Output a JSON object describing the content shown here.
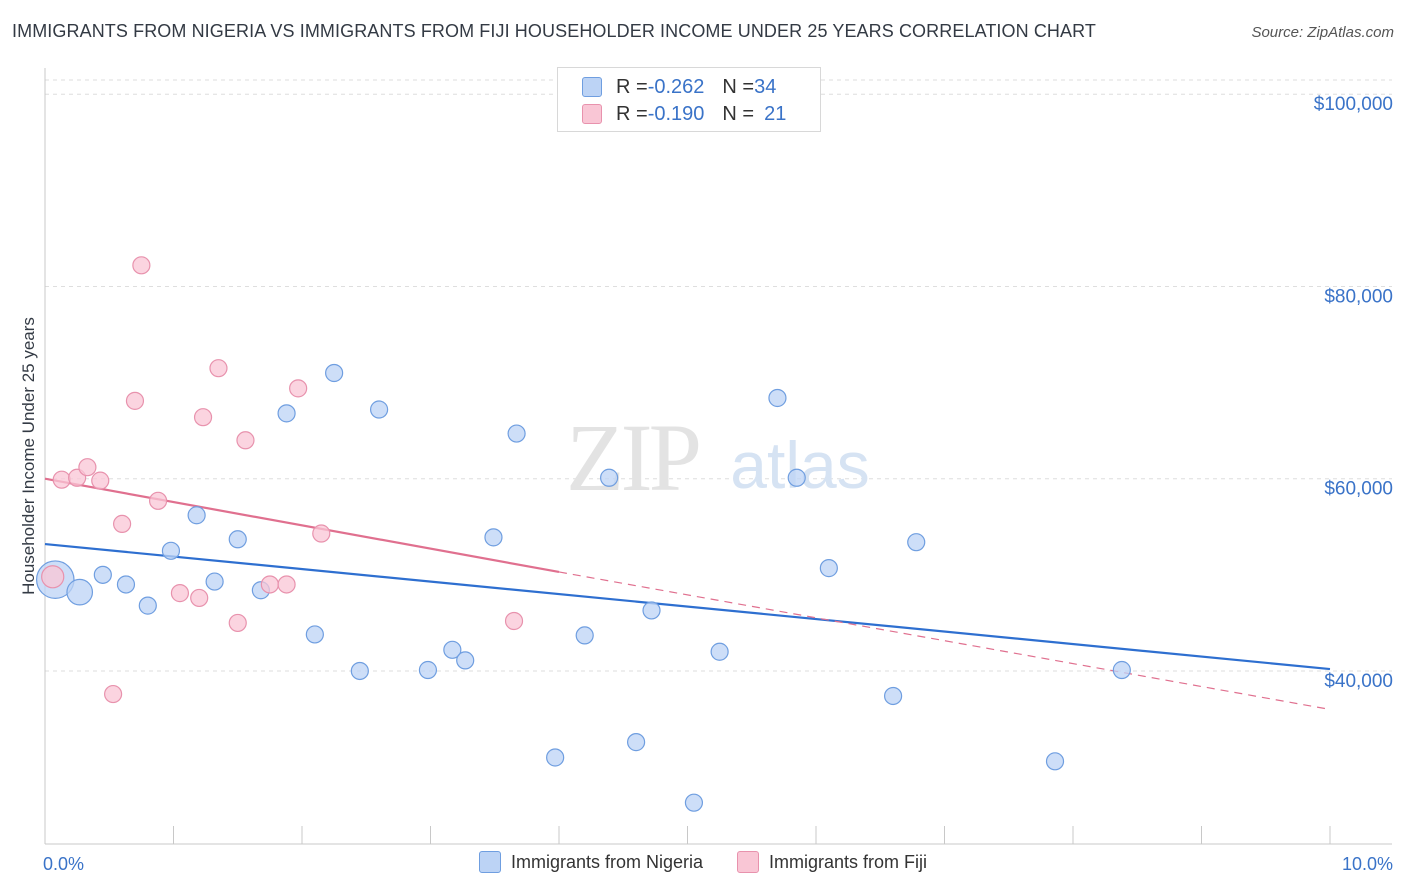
{
  "header": {
    "title": "IMMIGRANTS FROM NIGERIA VS IMMIGRANTS FROM FIJI HOUSEHOLDER INCOME UNDER 25 YEARS CORRELATION CHART",
    "source": "Source: ZipAtlas.com"
  },
  "watermark": {
    "zip": "ZIP",
    "atlas": "atlas"
  },
  "legend_top": [
    {
      "r_label": "R = ",
      "r_value": "-0.262",
      "n_label": "N = ",
      "n_value": "34"
    },
    {
      "r_label": "R = ",
      "r_value": "-0.190",
      "n_label": "N = ",
      "n_value": "21"
    }
  ],
  "colors": {
    "nigeria_fill": "#bcd3f5",
    "nigeria_stroke": "#6f9ee0",
    "nigeria_line": "#2e6fd0",
    "fiji_fill": "#f9c6d5",
    "fiji_stroke": "#e892ad",
    "fiji_line": "#e0708f",
    "grid": "#dedede",
    "tick_label": "#3a73c8"
  },
  "chart_data": {
    "type": "scatter",
    "title": "IMMIGRANTS FROM NIGERIA VS IMMIGRANTS FROM FIJI HOUSEHOLDER INCOME UNDER 25 YEARS CORRELATION CHART",
    "xlabel": "",
    "ylabel": "Householder Income Under 25 years",
    "xlim": [
      0,
      10
    ],
    "ylim": [
      22000,
      102000
    ],
    "x_tick_labels": [
      "0.0%",
      "10.0%"
    ],
    "y_ticks": [
      {
        "value": 40000,
        "label": "$40,000"
      },
      {
        "value": 60000,
        "label": "$60,000"
      },
      {
        "value": 80000,
        "label": "$80,000"
      },
      {
        "value": 100000,
        "label": "$100,000"
      }
    ],
    "series": [
      {
        "name": "Immigrants from Nigeria",
        "color": "#bcd3f5",
        "points": [
          [
            0.08,
            49500,
            2.2
          ],
          [
            0.27,
            48200,
            1.5
          ],
          [
            0.45,
            50000,
            1
          ],
          [
            0.63,
            49000,
            1
          ],
          [
            0.8,
            46800,
            1
          ],
          [
            0.98,
            52500,
            1
          ],
          [
            1.18,
            56200,
            1
          ],
          [
            1.32,
            49300,
            1
          ],
          [
            1.5,
            53700,
            1
          ],
          [
            1.68,
            48400,
            1
          ],
          [
            1.88,
            66800,
            1
          ],
          [
            2.1,
            43800,
            1
          ],
          [
            2.25,
            71000,
            1
          ],
          [
            2.45,
            40000,
            1
          ],
          [
            2.6,
            67200,
            1
          ],
          [
            2.98,
            40100,
            1
          ],
          [
            3.17,
            42200,
            1
          ],
          [
            3.27,
            41100,
            1
          ],
          [
            3.49,
            53900,
            1
          ],
          [
            3.67,
            64700,
            1
          ],
          [
            3.97,
            31000,
            1
          ],
          [
            4.2,
            43700,
            1
          ],
          [
            4.39,
            60100,
            1
          ],
          [
            4.6,
            32600,
            1
          ],
          [
            4.72,
            46300,
            1
          ],
          [
            5.05,
            26300,
            1
          ],
          [
            5.25,
            42000,
            1
          ],
          [
            5.7,
            68400,
            1
          ],
          [
            5.85,
            60100,
            1
          ],
          [
            6.1,
            50700,
            1
          ],
          [
            6.6,
            37400,
            1
          ],
          [
            6.78,
            53400,
            1
          ],
          [
            7.86,
            30600,
            1
          ],
          [
            8.38,
            40100,
            1
          ]
        ]
      },
      {
        "name": "Immigrants from Fiji",
        "color": "#f9c6d5",
        "points": [
          [
            0.06,
            49800,
            1.3
          ],
          [
            0.13,
            59900,
            1
          ],
          [
            0.25,
            60100,
            1
          ],
          [
            0.33,
            61200,
            1
          ],
          [
            0.43,
            59800,
            1
          ],
          [
            0.53,
            37600,
            1
          ],
          [
            0.6,
            55300,
            1
          ],
          [
            0.7,
            68100,
            1
          ],
          [
            0.75,
            82200,
            1
          ],
          [
            0.88,
            57700,
            1
          ],
          [
            1.05,
            48100,
            1
          ],
          [
            1.2,
            47600,
            1
          ],
          [
            1.23,
            66400,
            1
          ],
          [
            1.35,
            71500,
            1
          ],
          [
            1.5,
            45000,
            1
          ],
          [
            1.56,
            64000,
            1
          ],
          [
            1.75,
            49000,
            1
          ],
          [
            1.88,
            49000,
            1
          ],
          [
            1.97,
            69400,
            1
          ],
          [
            2.15,
            54300,
            1
          ],
          [
            3.65,
            45200,
            1
          ]
        ]
      }
    ],
    "trend_lines": [
      {
        "series": "Immigrants from Nigeria",
        "x": [
          0,
          10
        ],
        "y": [
          53200,
          40200
        ],
        "style": "solid"
      },
      {
        "series": "Immigrants from Fiji",
        "x": [
          0,
          4.0
        ],
        "y": [
          60000,
          50300
        ],
        "style": "solid"
      },
      {
        "series": "Immigrants from Fiji",
        "x": [
          4.0,
          10
        ],
        "y": [
          50300,
          36000
        ],
        "style": "dashed"
      }
    ],
    "legend": [
      "Immigrants from Nigeria",
      "Immigrants from Fiji"
    ],
    "grid": true
  }
}
